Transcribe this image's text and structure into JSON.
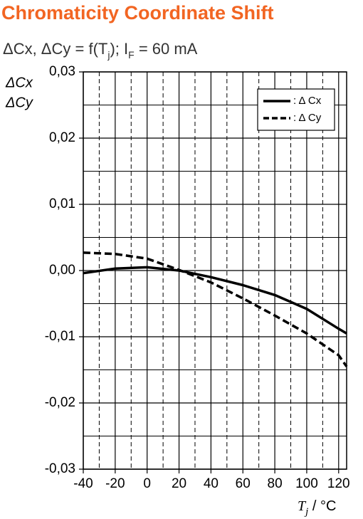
{
  "chart_data": {
    "type": "line",
    "title": "Chromaticity Coordinate Shift",
    "subtitle": [
      "ΔCx, ΔCy = f(T",
      "j",
      "); I",
      "F",
      " = 60 mA"
    ],
    "y_label": [
      "ΔCx",
      "ΔCy"
    ],
    "x_label": [
      "T",
      "j",
      " / °C"
    ],
    "x": [
      -40,
      -20,
      0,
      20,
      40,
      60,
      80,
      100,
      120,
      125
    ],
    "series": [
      {
        "name": ": Δ Cx",
        "color": "#000000",
        "dash": false,
        "values": [
          -0.0004,
          0.0003,
          0.0005,
          0.0,
          -0.001,
          -0.0022,
          -0.0037,
          -0.0058,
          -0.0088,
          -0.0095
        ]
      },
      {
        "name": ": Δ Cy",
        "color": "#000000",
        "dash": true,
        "values": [
          0.0027,
          0.0025,
          0.0018,
          0.0001,
          -0.0018,
          -0.0042,
          -0.0068,
          -0.0095,
          -0.0128,
          -0.0145
        ]
      }
    ],
    "xlim": [
      -40,
      125
    ],
    "xticks": [
      -40,
      -20,
      0,
      20,
      40,
      60,
      80,
      100,
      120
    ],
    "xminorticks": [
      -30,
      -10,
      10,
      30,
      50,
      70,
      90,
      110
    ],
    "ylim": [
      -0.03,
      0.03
    ],
    "yticks": [
      {
        "value": -0.03,
        "label": "-0,03"
      },
      {
        "value": -0.02,
        "label": "-0,02"
      },
      {
        "value": -0.01,
        "label": "-0,01"
      },
      {
        "value": 0,
        "label": "0,00"
      },
      {
        "value": 0.01,
        "label": "0,01"
      },
      {
        "value": 0.02,
        "label": "0,02"
      },
      {
        "value": 0.03,
        "label": "0,03"
      }
    ],
    "yminorticks": [
      -0.025,
      -0.015,
      -0.005,
      0.005,
      0.015,
      0.025
    ],
    "grid": true,
    "legend": "upper right"
  }
}
